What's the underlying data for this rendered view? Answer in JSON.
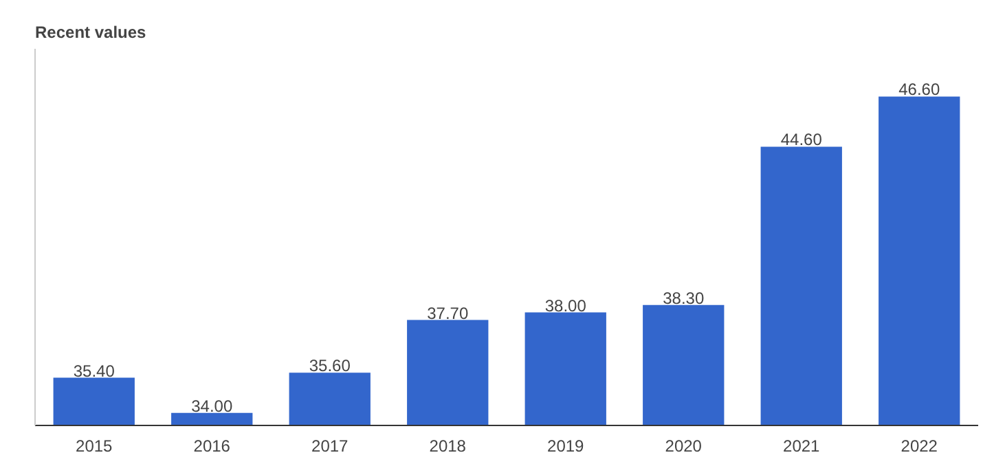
{
  "chart_data": {
    "type": "bar",
    "title": "Recent values",
    "categories": [
      "2015",
      "2016",
      "2017",
      "2018",
      "2019",
      "2020",
      "2021",
      "2022"
    ],
    "values": [
      35.4,
      34.0,
      35.6,
      37.7,
      38.0,
      38.3,
      44.6,
      46.6
    ],
    "value_labels": [
      "35.40",
      "34.00",
      "35.60",
      "37.70",
      "38.00",
      "38.30",
      "44.60",
      "46.60"
    ],
    "color": "#3366cc",
    "ylim": [
      33.5,
      48.5
    ],
    "tick_labels": "x",
    "grid": false
  }
}
